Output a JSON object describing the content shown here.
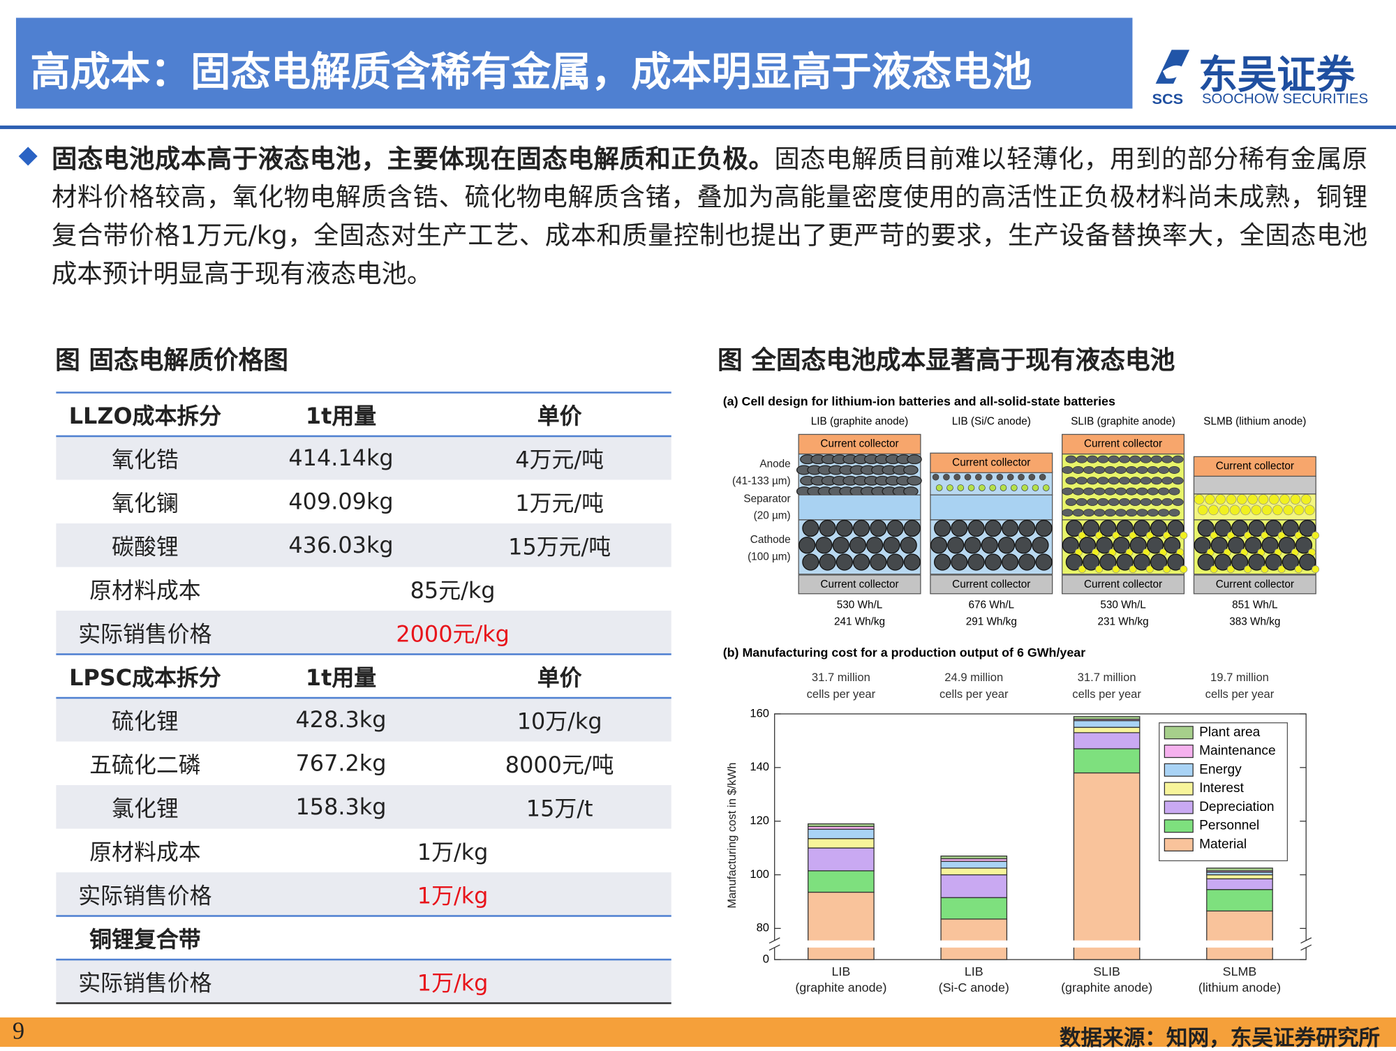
{
  "header": {
    "title": "高成本：固态电解质含稀有金属，成本明显高于液态电池",
    "logo": {
      "name": "东吴证券",
      "abbr": "SCS",
      "english": "SOOCHOW SECURITIES"
    }
  },
  "body": {
    "lead": "固态电池成本高于液态电池，主要体现在固态电解质和正负极。",
    "text": "固态电解质目前难以轻薄化，用到的部分稀有金属原材料价格较高，氧化物电解质含锆、硫化物电解质含锗，叠加为高能量密度使用的高活性正负极材料尚未成熟，铜锂复合带价格1万元/kg，全固态对生产工艺、成本和质量控制也提出了更严苛的要求，生产设备替换率大，全固态电池成本预计明显高于现有液态电池。"
  },
  "left_figure": {
    "title": "图 固态电解质价格图",
    "table": {
      "rows": [
        [
          "LLZO成本拆分",
          "1t用量",
          "单价"
        ],
        [
          "氧化锆",
          "414.14kg",
          "4万元/吨"
        ],
        [
          "氧化镧",
          "409.09kg",
          "1万元/吨"
        ],
        [
          "碳酸锂",
          "436.03kg",
          "15万元/吨"
        ],
        [
          "原材料成本",
          "85元/kg"
        ],
        [
          "实际销售价格",
          "2000元/kg"
        ],
        [
          "LPSC成本拆分",
          "1t用量",
          "单价"
        ],
        [
          "硫化锂",
          "428.3kg",
          "10万/kg"
        ],
        [
          "五硫化二磷",
          "767.2kg",
          "8000元/吨"
        ],
        [
          "氯化锂",
          "158.3kg",
          "15万/t"
        ],
        [
          "原材料成本",
          "1万/kg"
        ],
        [
          "实际销售价格",
          "1万/kg"
        ],
        [
          "铜锂复合带"
        ],
        [
          "实际销售价格",
          "1万/kg"
        ]
      ]
    }
  },
  "right_figure": {
    "title": "图 全固态电池成本显著高于现有液态电池",
    "diagram": {
      "caption": "(a) Cell design for lithium-ion batteries and all-solid-state batteries",
      "layer_labels": [
        "Anode\n(41-133 µm)",
        "Separator\n(20 µm)",
        "Cathode\n(100 µm)"
      ],
      "cells": [
        {
          "label": "LIB (graphite anode)",
          "top": "Current collector",
          "bottom": "Current collector",
          "density": [
            "530 Wh/L",
            "241 Wh/kg"
          ]
        },
        {
          "label": "LIB (Si/C anode)",
          "top": "Current collector",
          "bottom": "Current collector",
          "density": [
            "676 Wh/L",
            "291 Wh/kg"
          ]
        },
        {
          "label": "SLIB (graphite anode)",
          "top": "Current collector",
          "bottom": "Current collector",
          "density": [
            "530 Wh/L",
            "231 Wh/kg"
          ]
        },
        {
          "label": "SLMB (lithium anode)",
          "top": "Current collector",
          "bottom": "Current collector",
          "density": [
            "851 Wh/L",
            "383 Wh/kg"
          ]
        }
      ]
    }
  },
  "chart_data": {
    "type": "stacked_bar",
    "title": "(b) Manufacturing cost for a production output of 6 GWh/year",
    "y_label": "Manufacturing cost in $/kWh",
    "categories": [
      "LIB\n(graphite anode)",
      "LIB\n(Si-C anode)",
      "SLIB\n(graphite anode)",
      "SLMB\n(lithium anode)"
    ],
    "annotations": [
      "31.7 million\ncells per year",
      "24.9 million\ncells per year",
      "31.7 million\ncells per year",
      "19.7 million\ncells per year"
    ],
    "series": [
      {
        "name": "Material",
        "color": "#f9c39b",
        "values": [
          93.5,
          83.5,
          138,
          86.5
        ]
      },
      {
        "name": "Personnel",
        "color": "#7ee07e",
        "values": [
          8,
          8,
          9,
          8
        ]
      },
      {
        "name": "Depreciation",
        "color": "#c9a9f2",
        "values": [
          8.5,
          8.5,
          6,
          4
        ]
      },
      {
        "name": "Interest",
        "color": "#f7f49a",
        "values": [
          3.5,
          2.5,
          2,
          1.5
        ]
      },
      {
        "name": "Energy",
        "color": "#a9d3f5",
        "values": [
          3.5,
          2.5,
          2.5,
          1
        ]
      },
      {
        "name": "Maintenance",
        "color": "#f5b1ee",
        "values": [
          1,
          1,
          0.5,
          0.5
        ]
      },
      {
        "name": "Plant area",
        "color": "#a6cf8b",
        "values": [
          1,
          1,
          1,
          1
        ]
      }
    ],
    "ylim": [
      0,
      160
    ],
    "yticks": [
      0,
      80,
      100,
      120,
      140,
      160
    ],
    "axis_break": [
      0,
      80
    ],
    "legend": "top-right"
  },
  "footer": {
    "page": "9",
    "source": "数据来源：知网，东吴证券研究所"
  }
}
